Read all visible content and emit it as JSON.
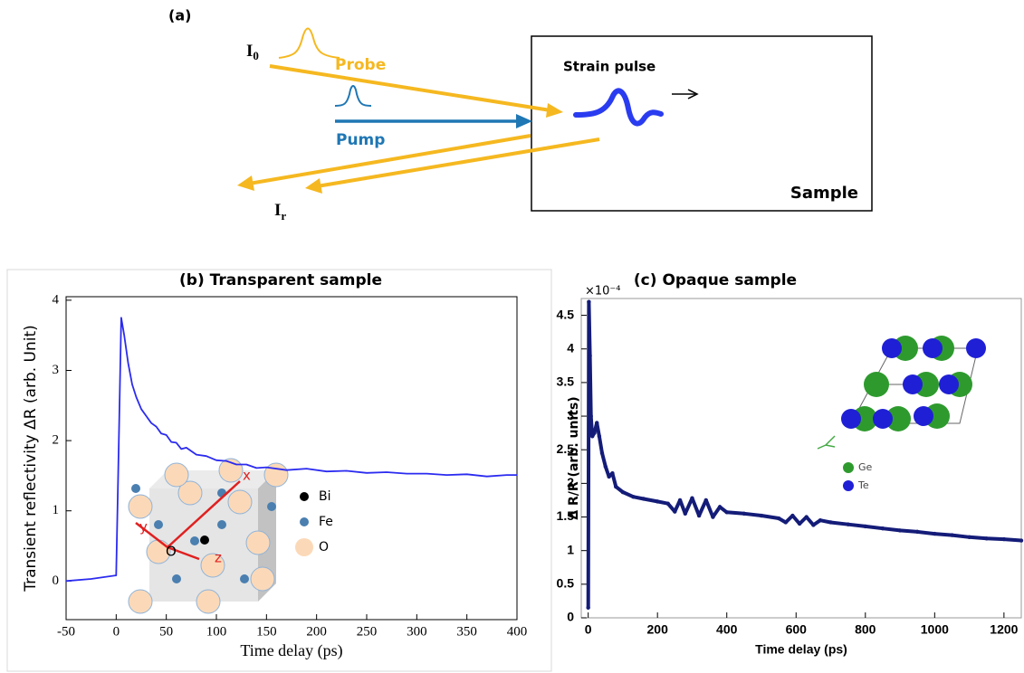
{
  "diagram": {
    "label": "(a)",
    "incident": {
      "text": "I",
      "sub": "0"
    },
    "reflected": {
      "text": "I",
      "sub": "r"
    },
    "probe": "Probe",
    "pump": "Pump",
    "strain": "Strain pulse",
    "sample": "Sample"
  },
  "chart_data": [
    {
      "type": "line",
      "title": "(b) Transparent sample",
      "xlabel": "Time delay (ps)",
      "ylabel": "Transient reflectivity ΔR (arb. Unit)",
      "xlim": [
        -50,
        400
      ],
      "ylim": [
        -0.55,
        4.05
      ],
      "xticks": [
        -50,
        0,
        50,
        100,
        150,
        200,
        250,
        300,
        350,
        400
      ],
      "yticks": [
        0,
        1,
        2,
        3,
        4
      ],
      "inset_legend": [
        "Bi",
        "Fe",
        "O"
      ],
      "inset_axes": [
        "x",
        "y",
        "z",
        "O"
      ],
      "series": [
        {
          "color": "#2b2bf0",
          "x": [
            -50,
            -25,
            0,
            2,
            5,
            8,
            12,
            16,
            20,
            25,
            30,
            35,
            40,
            45,
            50,
            55,
            60,
            65,
            70,
            80,
            90,
            100,
            110,
            120,
            130,
            140,
            150,
            170,
            190,
            210,
            230,
            250,
            270,
            290,
            310,
            330,
            350,
            370,
            390,
            400
          ],
          "values": [
            0.0,
            0.03,
            0.08,
            1.5,
            3.75,
            3.5,
            3.1,
            2.8,
            2.62,
            2.45,
            2.35,
            2.25,
            2.2,
            2.1,
            2.08,
            1.98,
            1.97,
            1.88,
            1.9,
            1.8,
            1.78,
            1.72,
            1.71,
            1.66,
            1.66,
            1.61,
            1.62,
            1.58,
            1.6,
            1.56,
            1.57,
            1.54,
            1.55,
            1.53,
            1.53,
            1.51,
            1.52,
            1.49,
            1.51,
            1.51
          ]
        }
      ]
    },
    {
      "type": "line",
      "title": "(c) Opaque sample",
      "xlabel": "Time delay (ps)",
      "ylabel": "Δ R/R (arb. units)",
      "multiplier": "×10⁻⁴",
      "xlim": [
        -20,
        1250
      ],
      "ylim": [
        0,
        4.75
      ],
      "markers": true,
      "xticks": [
        0,
        200,
        400,
        600,
        800,
        1000,
        1200
      ],
      "yticks": [
        0,
        0.5,
        1,
        1.5,
        2,
        2.5,
        3,
        3.5,
        4,
        4.5
      ],
      "inset_legend": [
        "Ge",
        "Te"
      ],
      "series": [
        {
          "color": "#141c78",
          "x": [
            0,
            2,
            5,
            8,
            12,
            18,
            25,
            32,
            40,
            50,
            60,
            70,
            80,
            100,
            130,
            160,
            200,
            230,
            250,
            265,
            280,
            300,
            320,
            340,
            360,
            380,
            400,
            450,
            500,
            550,
            570,
            590,
            610,
            630,
            650,
            670,
            700,
            750,
            800,
            850,
            900,
            950,
            1000,
            1050,
            1100,
            1150,
            1200,
            1250
          ],
          "values": [
            0.15,
            4.7,
            3.9,
            3.0,
            2.7,
            2.75,
            2.9,
            2.7,
            2.45,
            2.25,
            2.1,
            2.15,
            1.95,
            1.87,
            1.8,
            1.77,
            1.73,
            1.7,
            1.58,
            1.75,
            1.55,
            1.78,
            1.52,
            1.75,
            1.5,
            1.65,
            1.57,
            1.55,
            1.52,
            1.48,
            1.42,
            1.52,
            1.4,
            1.5,
            1.38,
            1.45,
            1.42,
            1.39,
            1.36,
            1.33,
            1.3,
            1.28,
            1.25,
            1.23,
            1.2,
            1.18,
            1.17,
            1.15
          ]
        }
      ]
    }
  ]
}
